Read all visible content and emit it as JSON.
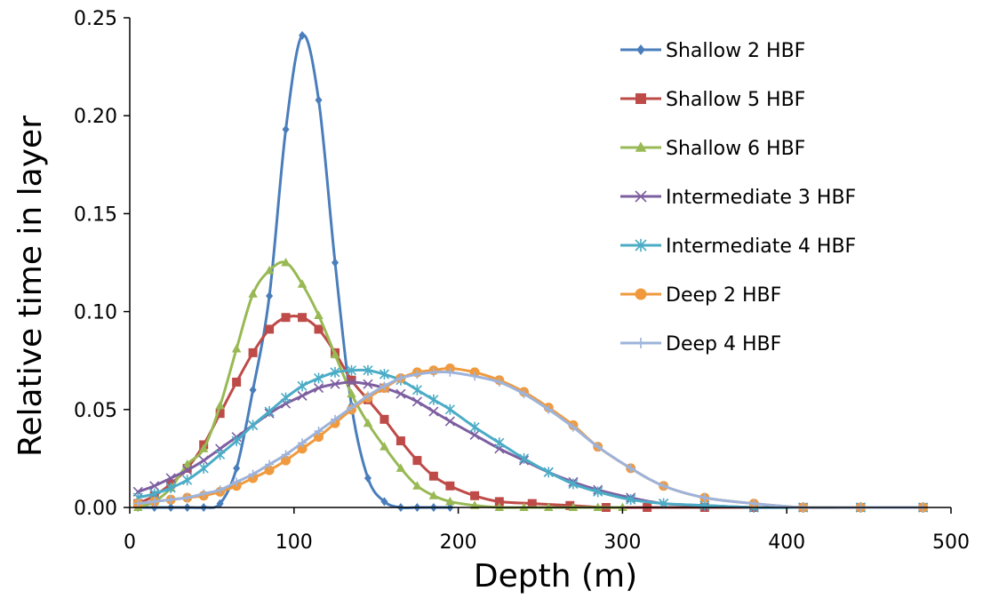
{
  "chart_data": {
    "type": "line",
    "title": "",
    "xlabel": "Depth (m)",
    "ylabel": "Relative time in layer",
    "xlim": [
      0,
      500
    ],
    "ylim": [
      0,
      0.25
    ],
    "xticks": [
      0,
      100,
      200,
      300,
      400,
      500
    ],
    "yticks": [
      0.0,
      0.05,
      0.1,
      0.15,
      0.2,
      0.25
    ],
    "ytick_labels": [
      "0.00",
      "0.05",
      "0.10",
      "0.15",
      "0.20",
      "0.25"
    ],
    "grid": false,
    "legend_position": "right",
    "series": [
      {
        "name": "Shallow 2 HBF",
        "color": "#4A7EBB",
        "marker": "diamond",
        "x": [
          5,
          15,
          25,
          35,
          45,
          55,
          65,
          75,
          85,
          95,
          105,
          115,
          125,
          135,
          145,
          155,
          165,
          175,
          185,
          195
        ],
        "y": [
          0.0,
          0.0,
          0.0,
          0.0,
          0.0,
          0.002,
          0.02,
          0.06,
          0.108,
          0.193,
          0.241,
          0.208,
          0.125,
          0.052,
          0.015,
          0.003,
          0.0,
          0.0,
          0.0,
          0.0
        ]
      },
      {
        "name": "Shallow 5 HBF",
        "color": "#BE4B48",
        "marker": "square",
        "x": [
          5,
          15,
          25,
          35,
          45,
          55,
          65,
          75,
          85,
          95,
          105,
          115,
          125,
          135,
          145,
          155,
          165,
          175,
          185,
          195,
          210,
          225,
          245,
          268,
          290,
          315,
          350,
          380,
          410,
          445,
          483
        ],
        "y": [
          0.002,
          0.006,
          0.012,
          0.02,
          0.032,
          0.048,
          0.064,
          0.079,
          0.091,
          0.097,
          0.097,
          0.091,
          0.079,
          0.065,
          0.055,
          0.045,
          0.034,
          0.024,
          0.016,
          0.011,
          0.006,
          0.003,
          0.002,
          0.001,
          0.0,
          0.0,
          0.0,
          0.0,
          0.0,
          0.0,
          0.0
        ]
      },
      {
        "name": "Shallow 6 HBF",
        "color": "#98B954",
        "marker": "triangle",
        "x": [
          5,
          15,
          25,
          35,
          45,
          55,
          65,
          75,
          85,
          95,
          105,
          115,
          125,
          135,
          145,
          155,
          165,
          175,
          185,
          195,
          210,
          225,
          240,
          255,
          270,
          285,
          300
        ],
        "y": [
          0.0,
          0.003,
          0.01,
          0.022,
          0.03,
          0.052,
          0.081,
          0.109,
          0.121,
          0.125,
          0.114,
          0.098,
          0.078,
          0.058,
          0.043,
          0.031,
          0.02,
          0.011,
          0.006,
          0.003,
          0.001,
          0.0,
          0.0,
          0.0,
          0.0,
          0.0,
          0.0
        ]
      },
      {
        "name": "Intermediate 3 HBF",
        "color": "#7D5FA0",
        "marker": "x",
        "x": [
          5,
          15,
          25,
          35,
          45,
          55,
          65,
          75,
          85,
          95,
          105,
          115,
          125,
          135,
          145,
          155,
          165,
          175,
          185,
          195,
          210,
          225,
          240,
          255,
          270,
          285,
          305,
          325,
          350,
          380,
          410,
          445,
          483
        ],
        "y": [
          0.008,
          0.011,
          0.015,
          0.019,
          0.024,
          0.03,
          0.036,
          0.042,
          0.048,
          0.053,
          0.057,
          0.061,
          0.063,
          0.064,
          0.063,
          0.061,
          0.058,
          0.054,
          0.049,
          0.044,
          0.037,
          0.03,
          0.024,
          0.018,
          0.013,
          0.009,
          0.005,
          0.002,
          0.001,
          0.0,
          0.0,
          0.0,
          0.0
        ]
      },
      {
        "name": "Intermediate 4 HBF",
        "color": "#4BACC6",
        "marker": "star",
        "x": [
          5,
          15,
          25,
          35,
          45,
          55,
          65,
          75,
          85,
          95,
          105,
          115,
          125,
          135,
          145,
          155,
          165,
          175,
          185,
          195,
          210,
          225,
          240,
          255,
          270,
          285,
          305,
          325,
          350,
          380,
          410,
          445,
          483
        ],
        "y": [
          0.005,
          0.007,
          0.01,
          0.014,
          0.02,
          0.027,
          0.034,
          0.042,
          0.049,
          0.056,
          0.062,
          0.066,
          0.069,
          0.07,
          0.07,
          0.068,
          0.065,
          0.06,
          0.055,
          0.05,
          0.041,
          0.033,
          0.025,
          0.018,
          0.012,
          0.008,
          0.004,
          0.002,
          0.001,
          0.0,
          0.0,
          0.0,
          0.0
        ]
      },
      {
        "name": "Deep 2 HBF",
        "color": "#F09A3D",
        "marker": "circle",
        "x": [
          5,
          15,
          25,
          35,
          45,
          55,
          65,
          75,
          85,
          95,
          105,
          115,
          125,
          135,
          145,
          155,
          165,
          175,
          185,
          195,
          210,
          225,
          240,
          255,
          270,
          285,
          305,
          325,
          350,
          380,
          410,
          445,
          483
        ],
        "y": [
          0.002,
          0.003,
          0.004,
          0.005,
          0.006,
          0.008,
          0.011,
          0.015,
          0.019,
          0.024,
          0.03,
          0.036,
          0.043,
          0.05,
          0.056,
          0.061,
          0.066,
          0.069,
          0.07,
          0.071,
          0.069,
          0.065,
          0.059,
          0.051,
          0.042,
          0.031,
          0.02,
          0.011,
          0.005,
          0.002,
          0.0,
          0.0,
          0.0
        ]
      },
      {
        "name": "Deep 4 HBF",
        "color": "#9DB3DB",
        "marker": "plus",
        "x": [
          5,
          15,
          25,
          35,
          45,
          55,
          65,
          75,
          85,
          95,
          105,
          115,
          125,
          135,
          145,
          155,
          165,
          175,
          185,
          195,
          210,
          225,
          240,
          255,
          270,
          285,
          305,
          325,
          350,
          380,
          410,
          445,
          483
        ],
        "y": [
          0.002,
          0.003,
          0.004,
          0.005,
          0.007,
          0.009,
          0.013,
          0.017,
          0.022,
          0.027,
          0.033,
          0.039,
          0.045,
          0.051,
          0.057,
          0.062,
          0.066,
          0.068,
          0.069,
          0.069,
          0.067,
          0.064,
          0.058,
          0.05,
          0.041,
          0.031,
          0.02,
          0.011,
          0.005,
          0.002,
          0.0,
          0.0,
          0.0
        ]
      }
    ]
  }
}
